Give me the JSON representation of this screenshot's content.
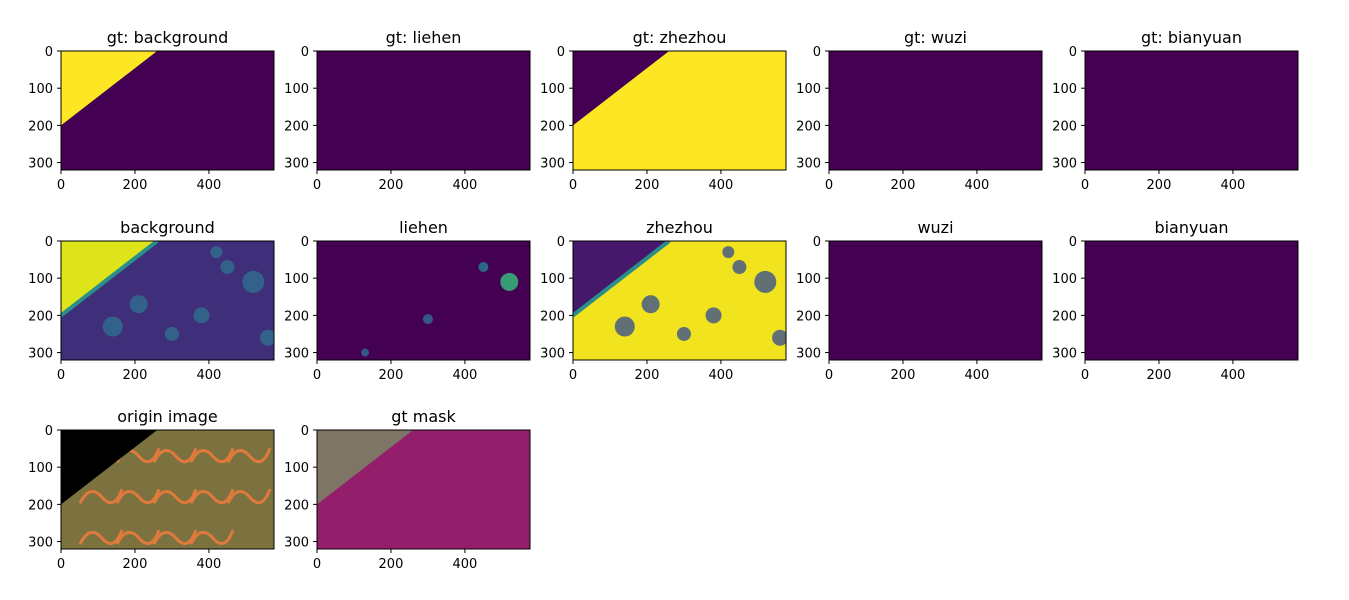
{
  "colors": {
    "viridis_low": "#440154",
    "viridis_high": "#fde725",
    "mask_background": "#7f7566",
    "mask_zhezhou": "#931f6c",
    "origin_black": "#000000",
    "origin_pcb": "#7c7240"
  },
  "chart_data": [
    {
      "type": "heatmap",
      "title": "gt: background",
      "image": "gt-background",
      "xlim": [
        0,
        576
      ],
      "ylim": [
        320,
        0
      ],
      "xticks": [
        "0",
        "200",
        "400"
      ],
      "yticks": [
        "0",
        "100",
        "200",
        "300"
      ]
    },
    {
      "type": "heatmap",
      "title": "gt: liehen",
      "image": "gt-zero",
      "xlim": [
        0,
        576
      ],
      "ylim": [
        320,
        0
      ],
      "xticks": [
        "0",
        "200",
        "400"
      ],
      "yticks": [
        "0",
        "100",
        "200",
        "300"
      ]
    },
    {
      "type": "heatmap",
      "title": "gt: zhezhou",
      "image": "gt-zhezhou",
      "xlim": [
        0,
        576
      ],
      "ylim": [
        320,
        0
      ],
      "xticks": [
        "0",
        "200",
        "400"
      ],
      "yticks": [
        "0",
        "100",
        "200",
        "300"
      ]
    },
    {
      "type": "heatmap",
      "title": "gt: wuzi",
      "image": "gt-zero",
      "xlim": [
        0,
        576
      ],
      "ylim": [
        320,
        0
      ],
      "xticks": [
        "0",
        "200",
        "400"
      ],
      "yticks": [
        "0",
        "100",
        "200",
        "300"
      ]
    },
    {
      "type": "heatmap",
      "title": "gt: bianyuan",
      "image": "gt-zero",
      "xlim": [
        0,
        576
      ],
      "ylim": [
        320,
        0
      ],
      "xticks": [
        "0",
        "200",
        "400"
      ],
      "yticks": [
        "0",
        "100",
        "200",
        "300"
      ]
    },
    {
      "type": "heatmap",
      "title": "background",
      "image": "pred-background",
      "xlim": [
        0,
        576
      ],
      "ylim": [
        320,
        0
      ],
      "xticks": [
        "0",
        "200",
        "400"
      ],
      "yticks": [
        "0",
        "100",
        "200",
        "300"
      ]
    },
    {
      "type": "heatmap",
      "title": "liehen",
      "image": "pred-liehen",
      "xlim": [
        0,
        576
      ],
      "ylim": [
        320,
        0
      ],
      "xticks": [
        "0",
        "200",
        "400"
      ],
      "yticks": [
        "0",
        "100",
        "200",
        "300"
      ]
    },
    {
      "type": "heatmap",
      "title": "zhezhou",
      "image": "pred-zhezhou",
      "xlim": [
        0,
        576
      ],
      "ylim": [
        320,
        0
      ],
      "xticks": [
        "0",
        "200",
        "400"
      ],
      "yticks": [
        "0",
        "100",
        "200",
        "300"
      ]
    },
    {
      "type": "heatmap",
      "title": "wuzi",
      "image": "pred-zero",
      "xlim": [
        0,
        576
      ],
      "ylim": [
        320,
        0
      ],
      "xticks": [
        "0",
        "200",
        "400"
      ],
      "yticks": [
        "0",
        "100",
        "200",
        "300"
      ]
    },
    {
      "type": "heatmap",
      "title": "bianyuan",
      "image": "pred-zero",
      "xlim": [
        0,
        576
      ],
      "ylim": [
        320,
        0
      ],
      "xticks": [
        "0",
        "200",
        "400"
      ],
      "yticks": [
        "0",
        "100",
        "200",
        "300"
      ]
    },
    {
      "type": "heatmap",
      "title": "origin image",
      "image": "origin",
      "xlim": [
        0,
        576
      ],
      "ylim": [
        320,
        0
      ],
      "xticks": [
        "0",
        "200",
        "400"
      ],
      "yticks": [
        "0",
        "100",
        "200",
        "300"
      ]
    },
    {
      "type": "heatmap",
      "title": "gt mask",
      "image": "gt-mask",
      "xlim": [
        0,
        576
      ],
      "ylim": [
        320,
        0
      ],
      "xticks": [
        "0",
        "200",
        "400"
      ],
      "yticks": [
        "0",
        "100",
        "200",
        "300"
      ]
    }
  ]
}
